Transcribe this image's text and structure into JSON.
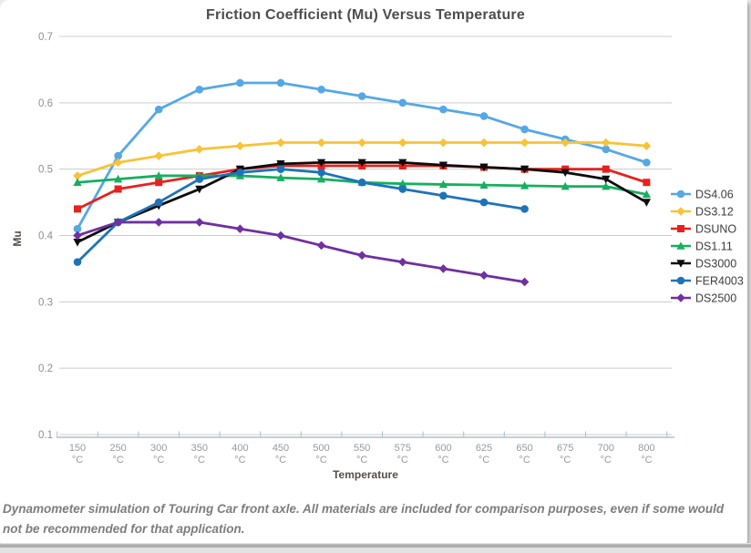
{
  "chart_data": {
    "type": "line",
    "title": "Friction Coefficient (Mu) Versus Temperature",
    "xlabel": "Temperature",
    "ylabel": "Mu",
    "ylim": [
      0.1,
      0.7
    ],
    "yticks": [
      0.7,
      0.6,
      0.5,
      0.4,
      0.3,
      0.2,
      0.1
    ],
    "grid": true,
    "legend_position": "right",
    "categories": [
      "150",
      "250",
      "300",
      "350",
      "400",
      "450",
      "500",
      "550",
      "575",
      "600",
      "625",
      "650",
      "675",
      "700",
      "800"
    ],
    "category_unit": "°C",
    "series": [
      {
        "name": "DS4.06",
        "color": "#55a8e5",
        "marker": "circle",
        "values": [
          0.41,
          0.52,
          0.59,
          0.62,
          0.63,
          0.63,
          0.62,
          0.61,
          0.6,
          0.59,
          0.58,
          0.56,
          0.545,
          0.53,
          0.51
        ]
      },
      {
        "name": "DS3.12",
        "color": "#f7c337",
        "marker": "diamond",
        "values": [
          0.49,
          0.51,
          0.52,
          0.53,
          0.535,
          0.54,
          0.54,
          0.54,
          0.54,
          0.54,
          0.54,
          0.54,
          0.54,
          0.54,
          0.535
        ]
      },
      {
        "name": "DSUNO",
        "color": "#e8211d",
        "marker": "square",
        "values": [
          0.44,
          0.47,
          0.48,
          0.49,
          0.5,
          0.505,
          0.505,
          0.505,
          0.505,
          0.505,
          0.503,
          0.5,
          0.5,
          0.5,
          0.48
        ]
      },
      {
        "name": "DS1.11",
        "color": "#16af5f",
        "marker": "triangle-up",
        "values": [
          0.48,
          0.485,
          0.49,
          0.49,
          0.49,
          0.487,
          0.485,
          0.48,
          0.478,
          0.477,
          0.476,
          0.475,
          0.474,
          0.474,
          0.462
        ]
      },
      {
        "name": "DS3000",
        "color": "#0d0d0d",
        "marker": "triangle-down",
        "values": [
          0.39,
          0.42,
          0.445,
          0.47,
          0.5,
          0.508,
          0.51,
          0.51,
          0.51,
          0.506,
          0.503,
          0.5,
          0.495,
          0.485,
          0.45
        ]
      },
      {
        "name": "FER4003",
        "color": "#1e73b8",
        "marker": "circle",
        "values": [
          0.36,
          0.42,
          0.45,
          0.485,
          0.495,
          0.5,
          0.495,
          0.48,
          0.47,
          0.46,
          0.45,
          0.44,
          null,
          null,
          null
        ]
      },
      {
        "name": "DS2500",
        "color": "#7030a0",
        "marker": "diamond",
        "values": [
          0.4,
          0.42,
          0.42,
          0.42,
          0.41,
          0.4,
          0.385,
          0.37,
          0.36,
          0.35,
          0.34,
          0.33,
          null,
          null,
          null
        ]
      }
    ]
  },
  "caption": {
    "text": "Dynamometer simulation of Touring Car front axle. All materials are included for comparison purposes, even if some would not be recommended for that application."
  },
  "colors": {
    "gridline": "#cccccc",
    "axis_line": "#aebfca",
    "tick_label": "#999999",
    "y_label": "#8f8f8f",
    "legend_text": "#3d3d3d",
    "title_text": "#4d4d4d",
    "axis_title_text": "#564f4a"
  }
}
